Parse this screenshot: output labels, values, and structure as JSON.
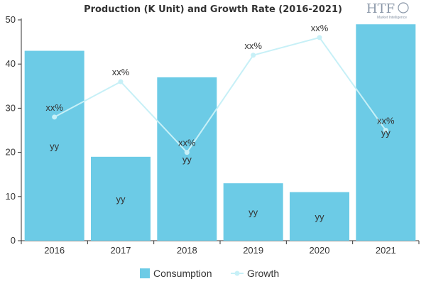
{
  "chart_data": {
    "type": "bar",
    "title": "Production (K Unit) and Growth Rate (2016-2021)",
    "categories": [
      "2016",
      "2017",
      "2018",
      "2019",
      "2020",
      "2021"
    ],
    "ylim": [
      0,
      50
    ],
    "yticks": [
      0,
      10,
      20,
      30,
      40,
      50
    ],
    "grid": false,
    "legend_position": "bottom",
    "series": [
      {
        "name": "Consumption",
        "type": "bar",
        "color": "#6ccbe6",
        "values": [
          43,
          19,
          37,
          13,
          11,
          49
        ],
        "labels": [
          "yy",
          "yy",
          "yy",
          "yy",
          "yy",
          "yy"
        ]
      },
      {
        "name": "Growth",
        "type": "line",
        "color": "#c7f0f7",
        "values": [
          28,
          36,
          20,
          42,
          46,
          25
        ],
        "labels": [
          "xx%",
          "xx%",
          "xx%",
          "xx%",
          "xx%",
          "xx%"
        ]
      }
    ]
  },
  "logo": {
    "brand": "HTF",
    "tagline": "Market Intelligence",
    "color": "#8a97a8"
  }
}
